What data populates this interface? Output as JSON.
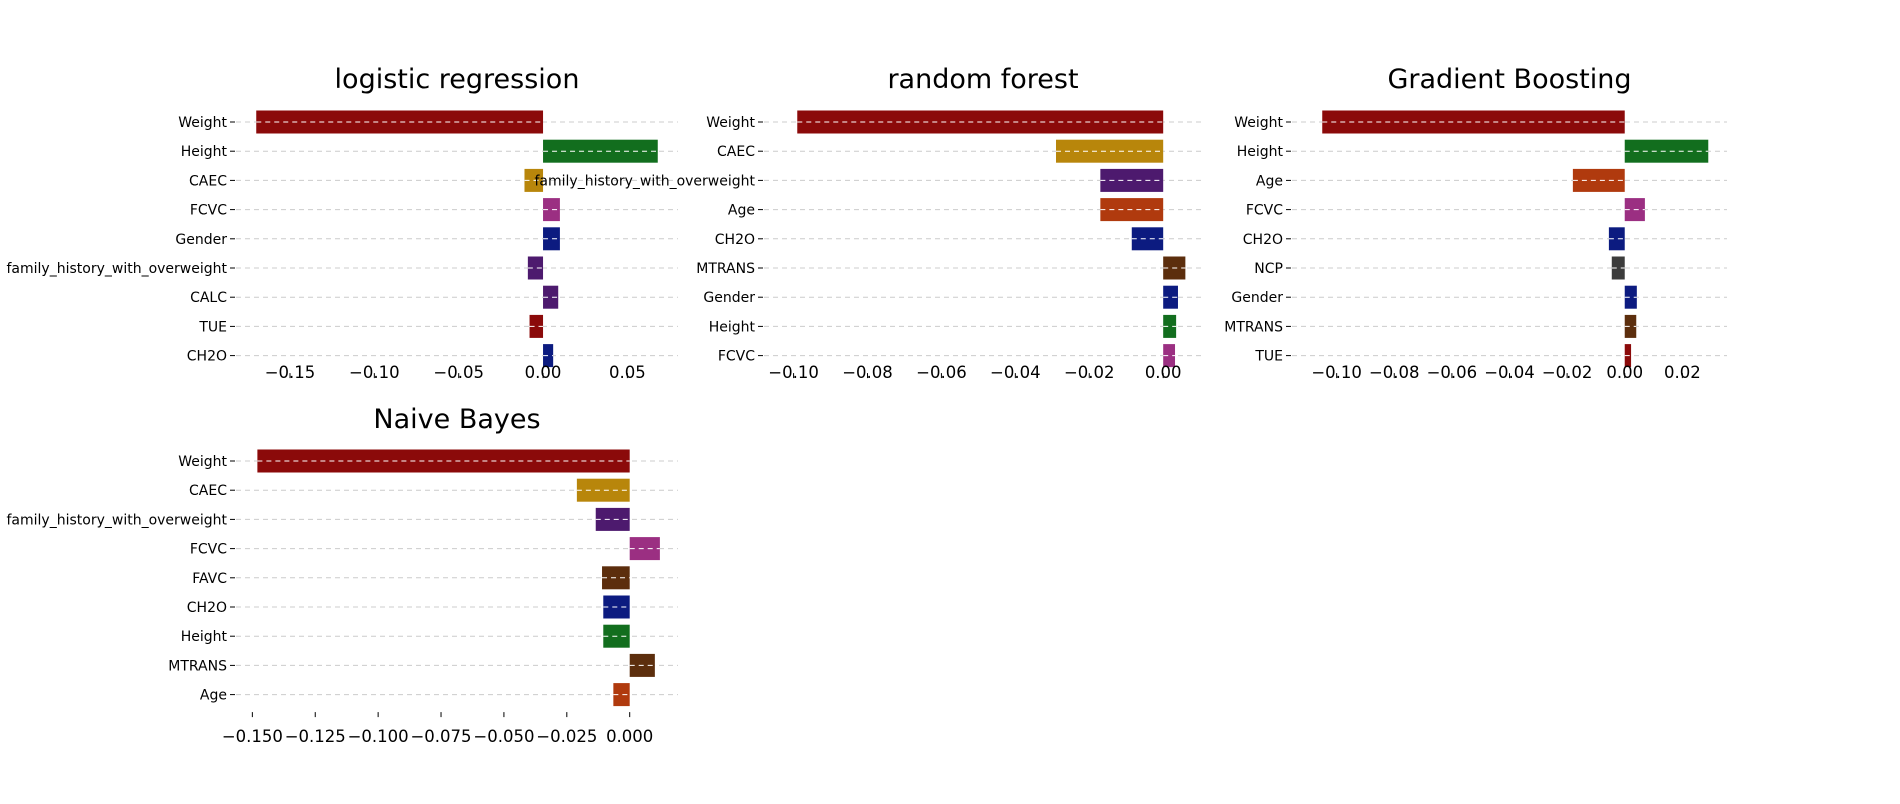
{
  "colors": {
    "Weight": "#8b0a0a",
    "Height": "#126e1e",
    "CAEC": "#b8860b",
    "FCVC": "#9b2f82",
    "Gender": "#0c1b80",
    "family_history_with_overweight": "#4d1a6e",
    "CALC": "#4d1a6e",
    "TUE": "#8b0a0a",
    "CH2O": "#0c1b80",
    "Age": "#b03a0e",
    "MTRANS": "#5c2e0d",
    "NCP": "#3c3c3c",
    "FAVC": "#5c2e0d",
    "grid": "#cccccc"
  },
  "chart_data": [
    {
      "type": "bar",
      "orientation": "horizontal",
      "title": "logistic regression",
      "categories": [
        "Weight",
        "Height",
        "CAEC",
        "FCVC",
        "Gender",
        "family_history_with_overweight",
        "CALC",
        "TUE",
        "CH2O"
      ],
      "values": [
        -0.17,
        0.068,
        -0.011,
        0.01,
        0.01,
        -0.009,
        0.009,
        -0.008,
        0.006
      ],
      "xlim": [
        -0.182,
        0.08
      ],
      "xticks": [
        -0.15,
        -0.1,
        -0.05,
        0.0,
        0.05
      ],
      "xtick_labels": [
        "−0.15",
        "−0.10",
        "−0.05",
        "0.00",
        "0.05"
      ],
      "grid": "y dashed"
    },
    {
      "type": "bar",
      "orientation": "horizontal",
      "title": "random forest",
      "categories": [
        "Weight",
        "CAEC",
        "family_history_with_overweight",
        "Age",
        "CH2O",
        "MTRANS",
        "Gender",
        "Height",
        "FCVC"
      ],
      "values": [
        -0.099,
        -0.029,
        -0.017,
        -0.017,
        -0.0085,
        0.006,
        0.004,
        0.0035,
        0.0032
      ],
      "xlim": [
        -0.108,
        0.0105
      ],
      "xticks": [
        -0.1,
        -0.08,
        -0.06,
        -0.04,
        -0.02,
        0.0
      ],
      "xtick_labels": [
        "−0.10",
        "−0.08",
        "−0.06",
        "−0.04",
        "−0.02",
        "0.00"
      ],
      "grid": "y dashed"
    },
    {
      "type": "bar",
      "orientation": "horizontal",
      "title": "Gradient Boosting",
      "categories": [
        "Weight",
        "Height",
        "Age",
        "FCVC",
        "CH2O",
        "NCP",
        "Gender",
        "MTRANS",
        "TUE"
      ],
      "values": [
        -0.105,
        0.029,
        -0.018,
        0.007,
        -0.0055,
        -0.0045,
        0.0042,
        0.004,
        0.0022
      ],
      "xlim": [
        -0.1155,
        0.0355
      ],
      "xticks": [
        -0.1,
        -0.08,
        -0.06,
        -0.04,
        -0.02,
        0.0,
        0.02
      ],
      "xtick_labels": [
        "−0.10",
        "−0.08",
        "−0.06",
        "−0.04",
        "−0.02",
        "0.00",
        "0.02"
      ],
      "grid": "y dashed"
    },
    {
      "type": "bar",
      "orientation": "horizontal",
      "title": "Naive Bayes",
      "categories": [
        "Weight",
        "CAEC",
        "family_history_with_overweight",
        "FCVC",
        "FAVC",
        "CH2O",
        "Height",
        "MTRANS",
        "Age"
      ],
      "values": [
        -0.148,
        -0.021,
        -0.0135,
        0.012,
        -0.011,
        -0.0105,
        -0.0105,
        0.01,
        -0.0065
      ],
      "xlim": [
        -0.1565,
        0.0192
      ],
      "xticks": [
        -0.15,
        -0.125,
        -0.1,
        -0.075,
        -0.05,
        -0.025,
        0.0
      ],
      "xtick_labels": [
        "−0.150",
        "−0.125",
        "−0.100",
        "−0.075",
        "−0.050",
        "−0.025",
        "0.000"
      ],
      "grid": "y dashed"
    }
  ]
}
